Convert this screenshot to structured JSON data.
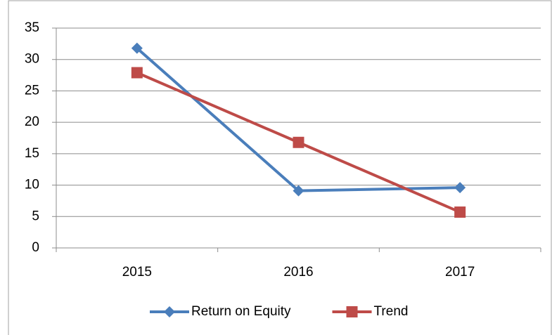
{
  "chart_data": {
    "type": "line",
    "categories": [
      "2015",
      "2016",
      "2017"
    ],
    "series": [
      {
        "name": "Return on Equity",
        "color": "#4a7ebb",
        "marker": "diamond",
        "values": [
          31.8,
          9.1,
          9.6
        ]
      },
      {
        "name": "Trend",
        "color": "#be4b48",
        "marker": "square",
        "values": [
          27.9,
          16.8,
          5.7
        ]
      }
    ],
    "ylim": [
      0,
      35
    ],
    "yticks": [
      0,
      5,
      10,
      15,
      20,
      25,
      30,
      35
    ],
    "grid": true,
    "legend": "bottom"
  }
}
